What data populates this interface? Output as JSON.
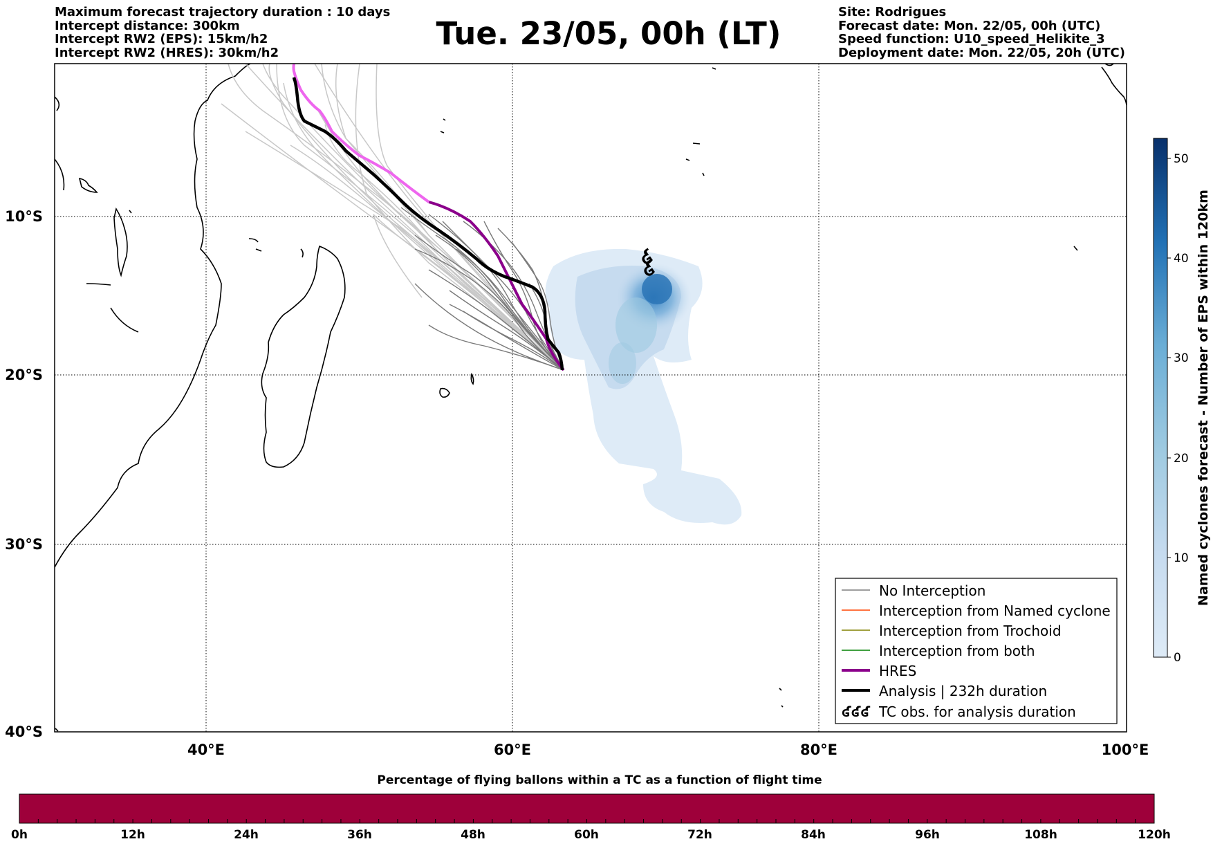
{
  "header_left": [
    "Maximum forecast trajectory duration : 10 days",
    "Intercept distance: 300km",
    "Intercept RW2 (EPS):  15km/h2",
    "Intercept RW2 (HRES): 30km/h2"
  ],
  "title": "Tue. 23/05, 00h (LT)",
  "header_right": [
    "Site: Rodrigues",
    "Forecast date: Mon. 22/05, 00h (UTC)",
    "Speed function: U10_speed_Helikite_3",
    "Deployment date: Mon. 22/05, 20h (UTC)"
  ],
  "map": {
    "lat_labels": [
      "10°S",
      "20°S",
      "30°S",
      "40°S"
    ],
    "lon_labels": [
      "40°E",
      "60°E",
      "80°E",
      "100°E"
    ],
    "extent": {
      "lon_min": 30,
      "lon_max": 100,
      "lat_min": -40,
      "lat_max": -0.5
    },
    "legend": [
      {
        "label": "No Interception",
        "color": "#7f7f7f",
        "style": "thin"
      },
      {
        "label": "Interception from Named cyclone",
        "color": "#ff4500",
        "style": "thin"
      },
      {
        "label": "Interception from Trochoid",
        "color": "#808000",
        "style": "thin"
      },
      {
        "label": "Interception from both",
        "color": "#008000",
        "style": "thin"
      },
      {
        "label": "HRES",
        "color": "#8b008b",
        "style": "thick"
      },
      {
        "label": "Analysis | 232h duration",
        "color": "#000000",
        "style": "thick"
      },
      {
        "label": "TC obs. for analysis duration",
        "color": "#000000",
        "style": "symbol"
      }
    ],
    "tc_symbol": "ʛʛʛ",
    "cyclone_symbol": "ʛ"
  },
  "colorbar": {
    "label": "Named cyclones forecast - Number of EPS within 120km",
    "ticks": [
      "0",
      "10",
      "20",
      "30",
      "40",
      "50"
    ],
    "min": 0,
    "max": 52,
    "color_low": "#deebf7",
    "color_high": "#08306b"
  },
  "timebar": {
    "title": "Percentage of flying ballons within a TC as a function of flight time",
    "ticks": [
      "0h",
      "12h",
      "24h",
      "36h",
      "48h",
      "60h",
      "72h",
      "84h",
      "96h",
      "108h",
      "120h"
    ],
    "color": "#9e003a"
  },
  "colors": {
    "hres_early": "#ee66ee",
    "hres_late": "#8b008b",
    "ensemble_light": "#c8c8c8",
    "ensemble_dark": "#7a7a7a"
  }
}
